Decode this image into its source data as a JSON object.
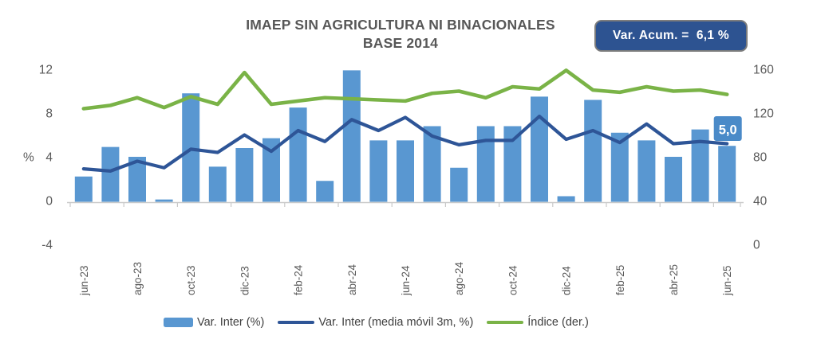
{
  "title": {
    "line1": "IMAEP SIN AGRICULTURA NI BINACIONALES",
    "line2": "BASE 2014"
  },
  "badge": {
    "text": "Var. Acum. =  6,1 %"
  },
  "colors": {
    "bar": "#5997D1",
    "moving_avg": "#2E5597",
    "indice": "#7AB347",
    "badge_bg": "#2D5391",
    "badge_border": "#7C7C7C",
    "label_bg": "#4A8AC8",
    "axis_text": "#595959",
    "axis_line": "#C9C9C9",
    "legend_text": "#3F3F3F"
  },
  "chart_data": {
    "type": "bar",
    "subtype": "combo-bar-line",
    "title": "IMAEP SIN AGRICULTURA NI BINACIONALES BASE 2014",
    "categories": [
      "jun-23",
      "jul-23",
      "ago-23",
      "sep-23",
      "oct-23",
      "nov-23",
      "dic-23",
      "ene-24",
      "feb-24",
      "mar-24",
      "abr-24",
      "may-24",
      "jun-24",
      "jul-24",
      "ago-24",
      "sep-24",
      "oct-24",
      "nov-24",
      "dic-24",
      "ene-25",
      "feb-25",
      "mar-25",
      "abr-25",
      "may-25",
      "jun-25"
    ],
    "x_tick_every": 2,
    "series": [
      {
        "name": "Var. Inter (%)",
        "type": "bar",
        "axis": "left",
        "values": [
          2.2,
          4.9,
          4.0,
          0.1,
          9.8,
          3.1,
          4.8,
          5.7,
          8.5,
          1.8,
          11.9,
          5.5,
          5.5,
          6.8,
          3.0,
          6.8,
          6.8,
          9.5,
          0.4,
          9.2,
          6.2,
          5.5,
          4.0,
          6.5,
          5.0
        ]
      },
      {
        "name": "Var. Inter (media móvil 3m, %)",
        "type": "line",
        "axis": "left",
        "values": [
          2.9,
          2.7,
          3.6,
          3.0,
          4.7,
          4.4,
          6.0,
          4.5,
          6.4,
          5.4,
          7.4,
          6.4,
          7.6,
          5.9,
          5.1,
          5.5,
          5.5,
          7.7,
          5.6,
          6.4,
          5.3,
          7.0,
          5.2,
          5.4,
          5.2
        ]
      },
      {
        "name": "Índice (der.)",
        "type": "line",
        "axis": "right",
        "values": [
          124,
          127,
          134,
          125,
          135,
          128,
          157,
          128,
          131,
          134,
          133,
          132,
          131,
          138,
          140,
          134,
          144,
          142,
          159,
          141,
          139,
          144,
          140,
          141,
          137
        ]
      }
    ],
    "left_axis": {
      "label": "%",
      "ticks": [
        12,
        8,
        4,
        0,
        -4
      ],
      "range": [
        -4,
        12
      ]
    },
    "right_axis": {
      "ticks": [
        160,
        120,
        80,
        40,
        0
      ],
      "range": [
        0,
        160
      ]
    },
    "annotation": {
      "text": "5,0",
      "category_index": 24
    },
    "grid": false,
    "legend_position": "bottom"
  }
}
